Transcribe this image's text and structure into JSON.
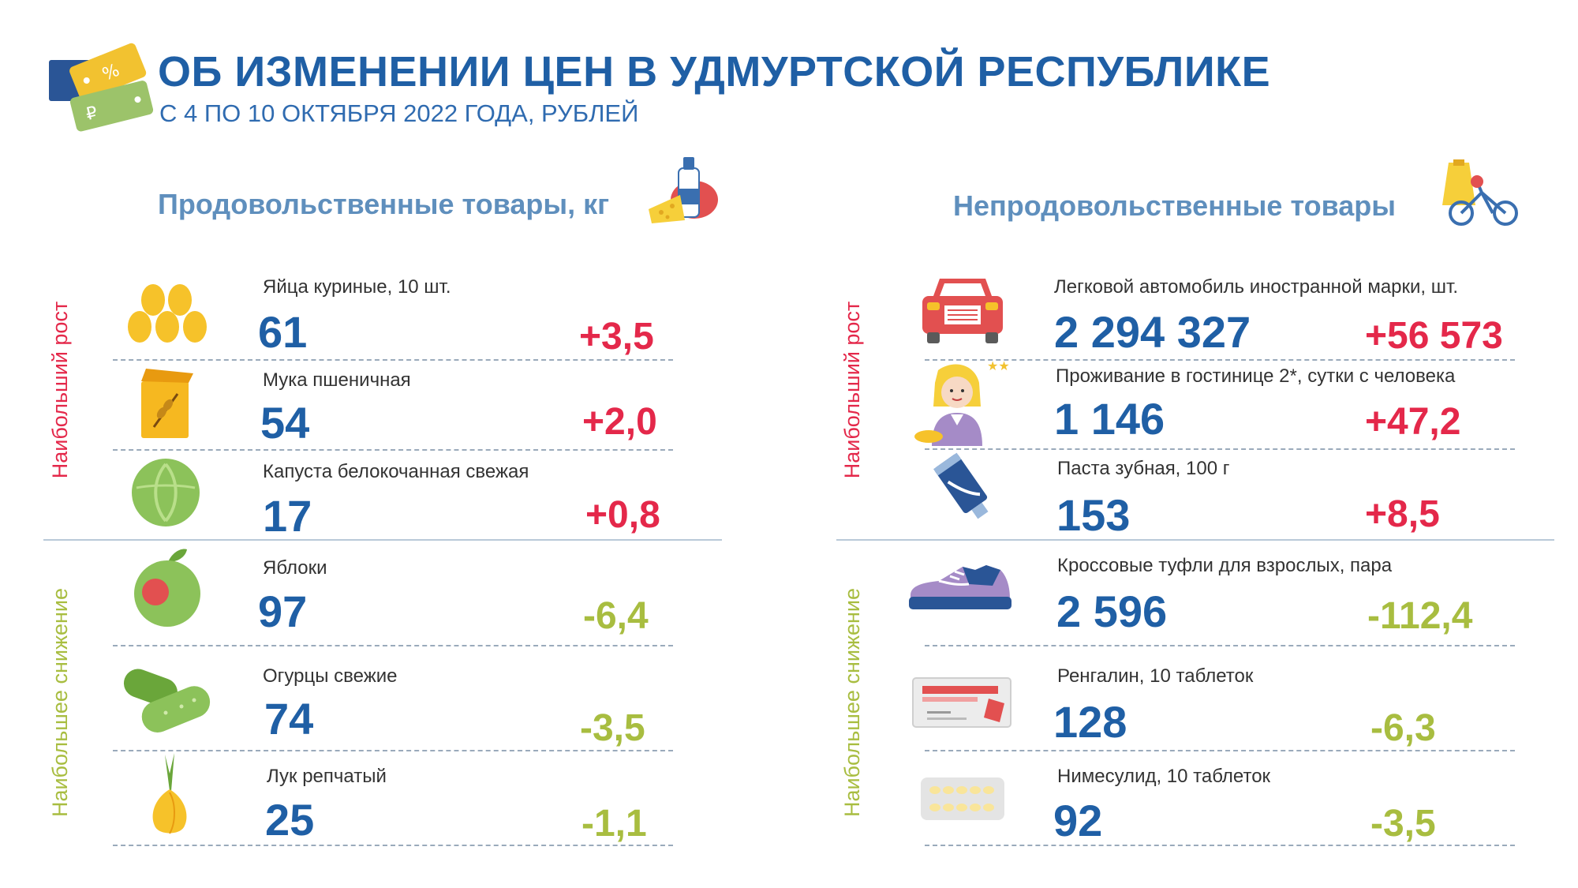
{
  "header": {
    "title": "ОБ ИЗМЕНЕНИИ ЦЕН В УДМУРТСКОЙ РЕСПУБЛИКЕ",
    "subtitle": "С 4 ПО 10 ОКТЯБРЯ 2022 ГОДА, РУБЛЕЙ"
  },
  "colors": {
    "title": "#1f5fa5",
    "increase": "#e4284a",
    "decrease": "#a8bd40",
    "section": "#5f8fbd"
  },
  "food": {
    "title": "Продовольственные товары, кг",
    "increase_label": "Наибольший рост",
    "decrease_label": "Наибольшее снижение",
    "items": [
      {
        "icon": "eggs-icon",
        "name": "Яйца куриные, 10 шт.",
        "price": "61",
        "change": "+3,5"
      },
      {
        "icon": "flour-icon",
        "name": "Мука пшеничная",
        "price": "54",
        "change": "+2,0"
      },
      {
        "icon": "cabbage-icon",
        "name": "Капуста белокочанная свежая",
        "price": "17",
        "change": "+0,8"
      },
      {
        "icon": "apple-icon",
        "name": "Яблоки",
        "price": "97",
        "change": "-6,4"
      },
      {
        "icon": "cucumber-icon",
        "name": "Огурцы свежие",
        "price": "74",
        "change": "-3,5"
      },
      {
        "icon": "onion-icon",
        "name": "Лук репчатый",
        "price": "25",
        "change": "-1,1"
      }
    ]
  },
  "nonfood": {
    "title": "Непродовольственные товары",
    "increase_label": "Наибольший рост",
    "decrease_label": "Наибольшее снижение",
    "items": [
      {
        "icon": "car-icon",
        "name": "Легковой автомобиль иностранной марки, шт.",
        "price": "2 294 327",
        "change": "+56 573"
      },
      {
        "icon": "hotel-receptionist-icon",
        "name": "Проживание в гостинице 2*, сутки с человека",
        "price": "1 146",
        "change": "+47,2"
      },
      {
        "icon": "toothpaste-icon",
        "name": "Паста зубная, 100 г",
        "price": "153",
        "change": "+8,5"
      },
      {
        "icon": "sneaker-icon",
        "name": "Кроссовые туфли для взрослых, пара",
        "price": "2 596",
        "change": "-112,4"
      },
      {
        "icon": "pill-box-icon",
        "name": "Ренгалин, 10 таблеток",
        "price": "128",
        "change": "-6,3"
      },
      {
        "icon": "pill-blister-icon",
        "name": "Нимесулид, 10 таблеток",
        "price": "92",
        "change": "-3,5"
      }
    ]
  }
}
